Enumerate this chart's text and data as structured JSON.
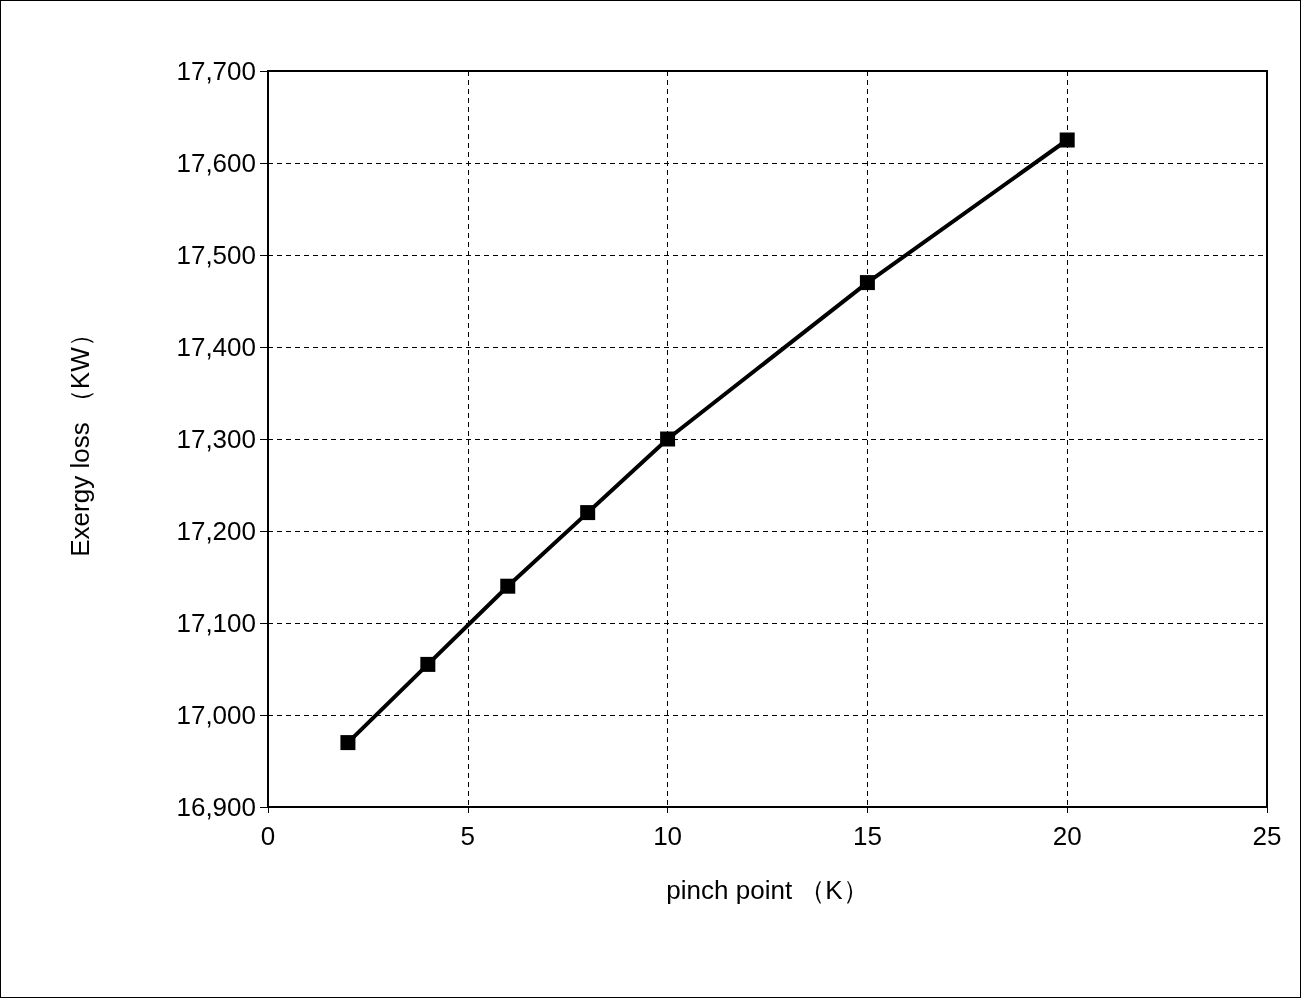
{
  "chart_data": {
    "type": "line",
    "xlabel": "pinch point （K）",
    "ylabel": "Exergy loss （KW）",
    "x": [
      2,
      4,
      6,
      8,
      10,
      15,
      20
    ],
    "series": [
      {
        "color": "#000000",
        "values": [
          16970,
          17055,
          17140,
          17220,
          17300,
          17470,
          17625
        ]
      }
    ],
    "xlim": [
      0,
      25
    ],
    "xticks": [
      0,
      5,
      10,
      15,
      20,
      25
    ],
    "ylim": [
      16900,
      17700
    ],
    "yticks": [
      {
        "value": 16900,
        "label": "16,900"
      },
      {
        "value": 17000,
        "label": "17,000"
      },
      {
        "value": 17100,
        "label": "17,100"
      },
      {
        "value": 17200,
        "label": "17,200"
      },
      {
        "value": 17300,
        "label": "17,300"
      },
      {
        "value": 17400,
        "label": "17,400"
      },
      {
        "value": 17500,
        "label": "17,500"
      },
      {
        "value": 17600,
        "label": "17,600"
      },
      {
        "value": 17700,
        "label": "17,700"
      }
    ],
    "grid": true,
    "marker": "square",
    "line_style": "solid"
  }
}
